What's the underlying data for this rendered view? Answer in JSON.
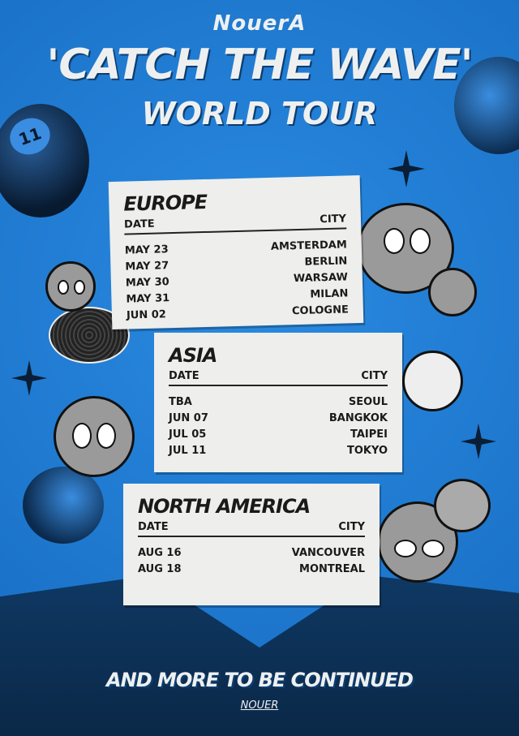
{
  "header": {
    "brand": "NouerA",
    "title": "'CATCH THE WAVE'",
    "subtitle": "WORLD TOUR"
  },
  "columns": {
    "date": "DATE",
    "city": "CITY"
  },
  "europe": {
    "region": "EUROPE",
    "shows": [
      {
        "date": "MAY 23",
        "city": "AMSTERDAM"
      },
      {
        "date": "MAY 27",
        "city": "BERLIN"
      },
      {
        "date": "MAY 30",
        "city": "WARSAW"
      },
      {
        "date": "MAY 31",
        "city": "MILAN"
      },
      {
        "date": "JUN 02",
        "city": "COLOGNE"
      }
    ]
  },
  "asia": {
    "region": "ASIA",
    "shows": [
      {
        "date": "TBA",
        "city": "SEOUL"
      },
      {
        "date": "JUN 07",
        "city": "BANGKOK"
      },
      {
        "date": "JUL 05",
        "city": "TAIPEI"
      },
      {
        "date": "JUL 11",
        "city": "TOKYO"
      }
    ]
  },
  "north_america": {
    "region": "NORTH AMERICA",
    "shows": [
      {
        "date": "AUG 16",
        "city": "VANCOUVER"
      },
      {
        "date": "AUG 18",
        "city": "MONTREAL"
      }
    ]
  },
  "footer": {
    "text": "AND MORE TO BE CONTINUED",
    "signature": "NOUER"
  },
  "decor": {
    "ball_number": "11",
    "colors": {
      "background": "#1f7fd6",
      "card": "#eeeeec",
      "text": "#eef0f0"
    }
  }
}
